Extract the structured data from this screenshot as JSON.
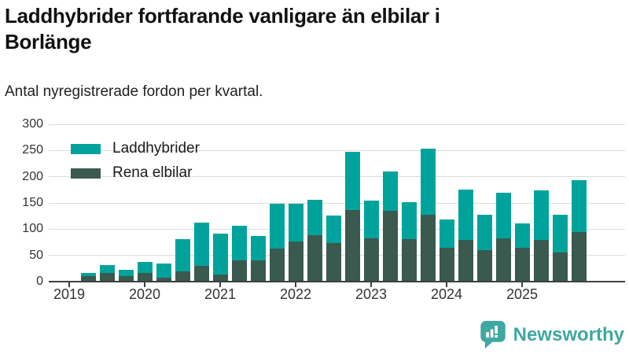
{
  "title": "Laddhybrider fortfarande vanligare än elbilar i Borlänge",
  "subtitle": "Antal nyregistrerade fordon per kvartal.",
  "colors": {
    "laddhybrider": "#00a39b",
    "rena_elbilar": "#3a594f",
    "brand_teal": "#3fa8a0",
    "gridline": "#dcdcdc",
    "axis": "#404040",
    "text": "#1a1a1a"
  },
  "legend": [
    {
      "label": "Laddhybrider",
      "color": "#00a39b"
    },
    {
      "label": "Rena elbilar",
      "color": "#3a594f"
    }
  ],
  "branding": {
    "name": "Newsworthy",
    "icon": "bar-chart-speech-bubble-icon",
    "color": "#3fa8a0"
  },
  "chart_data": {
    "type": "bar",
    "stacked": true,
    "title": "Laddhybrider fortfarande vanligare än elbilar i Borlänge",
    "subtitle": "Antal nyregistrerade fordon per kvartal.",
    "xlabel": "",
    "ylabel": "",
    "ylim": [
      0,
      300
    ],
    "yticks": [
      0,
      50,
      100,
      150,
      200,
      250,
      300
    ],
    "grid": true,
    "legend_position": "top-left-inside",
    "year_ticks": [
      "2019",
      "2020",
      "2021",
      "2022",
      "2023",
      "2024",
      "2025"
    ],
    "x": [
      "2019 Q2",
      "2019 Q3",
      "2019 Q4",
      "2020 Q1",
      "2020 Q2",
      "2020 Q3",
      "2020 Q4",
      "2021 Q1",
      "2021 Q2",
      "2021 Q3",
      "2021 Q4",
      "2022 Q1",
      "2022 Q2",
      "2022 Q3",
      "2022 Q4",
      "2023 Q1",
      "2023 Q2",
      "2023 Q3",
      "2023 Q4",
      "2024 Q1",
      "2024 Q2",
      "2024 Q3",
      "2024 Q4",
      "2025 Q1",
      "2025 Q2",
      "2025 Q3",
      "2025 Q4"
    ],
    "series": [
      {
        "name": "Rena elbilar",
        "color": "#3a594f",
        "values": [
          11,
          16,
          10,
          16,
          7,
          20,
          30,
          13,
          40,
          41,
          63,
          77,
          88,
          73,
          137,
          83,
          135,
          81,
          128,
          65,
          79,
          60,
          82,
          64,
          79,
          56,
          95
        ]
      },
      {
        "name": "Laddhybrider",
        "color": "#00a39b",
        "values": [
          6,
          15,
          12,
          21,
          27,
          61,
          83,
          79,
          66,
          46,
          86,
          71,
          68,
          53,
          111,
          72,
          75,
          71,
          125,
          54,
          96,
          68,
          87,
          47,
          95,
          72,
          99
        ]
      }
    ],
    "totals": [
      17,
      31,
      22,
      37,
      34,
      81,
      113,
      92,
      106,
      87,
      149,
      148,
      156,
      126,
      248,
      155,
      210,
      152,
      253,
      119,
      175,
      128,
      169,
      111,
      174,
      128,
      194
    ]
  }
}
